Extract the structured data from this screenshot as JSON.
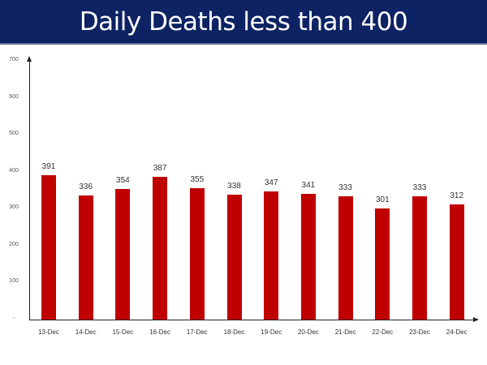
{
  "banner": {
    "title": "Daily Deaths less than 400"
  },
  "colors": {
    "banner_bg": "#0d2363",
    "bar": "#c00000"
  },
  "chart_data": {
    "type": "bar",
    "title": "Daily Deaths less than 400",
    "xlabel": "",
    "ylabel": "",
    "ylim": [
      0,
      700
    ],
    "yticks": [
      "-",
      "100",
      "200",
      "300",
      "400",
      "500",
      "600",
      "700"
    ],
    "grid": false,
    "legend": null,
    "categories": [
      "13-Dec",
      "14-Dec",
      "15-Dec",
      "16-Dec",
      "17-Dec",
      "18-Dec",
      "19-Dec",
      "20-Dec",
      "21-Dec",
      "22-Dec",
      "23-Dec",
      "24-Dec"
    ],
    "values": [
      391,
      336,
      354,
      387,
      355,
      338,
      347,
      341,
      333,
      301,
      333,
      312
    ],
    "labels": [
      "391",
      "336",
      "354",
      "387",
      "355",
      "338",
      "347",
      "341",
      "333",
      "301",
      "333",
      "312"
    ]
  }
}
